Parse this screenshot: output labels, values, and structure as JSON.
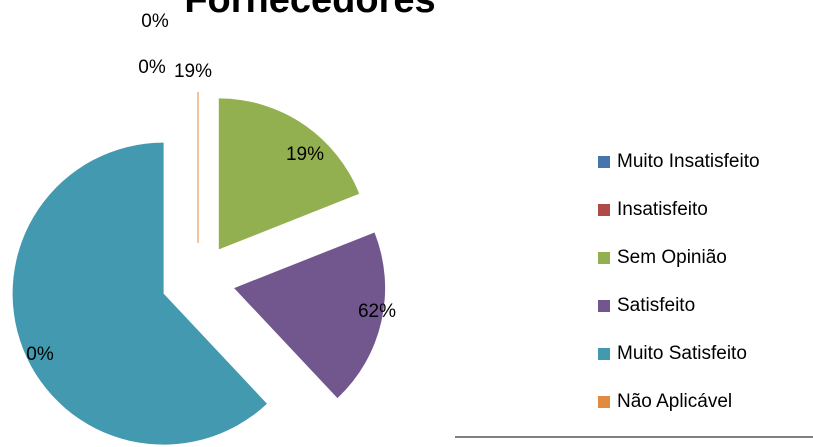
{
  "chart_data": {
    "type": "pie",
    "title": "Fornecedores",
    "categories": [
      "Muito Insatisfeito",
      "Insatisfeito",
      "Sem Opinião",
      "Satisfeito",
      "Muito Satisfeito",
      "Não Aplicável"
    ],
    "values": [
      0,
      0,
      19,
      19,
      62,
      0
    ],
    "value_labels": [
      "0%",
      "0%",
      "19%",
      "19%",
      "62%",
      "0%"
    ],
    "colors": [
      "#4675ad",
      "#b04a47",
      "#93b050",
      "#72578f",
      "#4299b0",
      "#e28a3f"
    ],
    "legend": "right"
  }
}
